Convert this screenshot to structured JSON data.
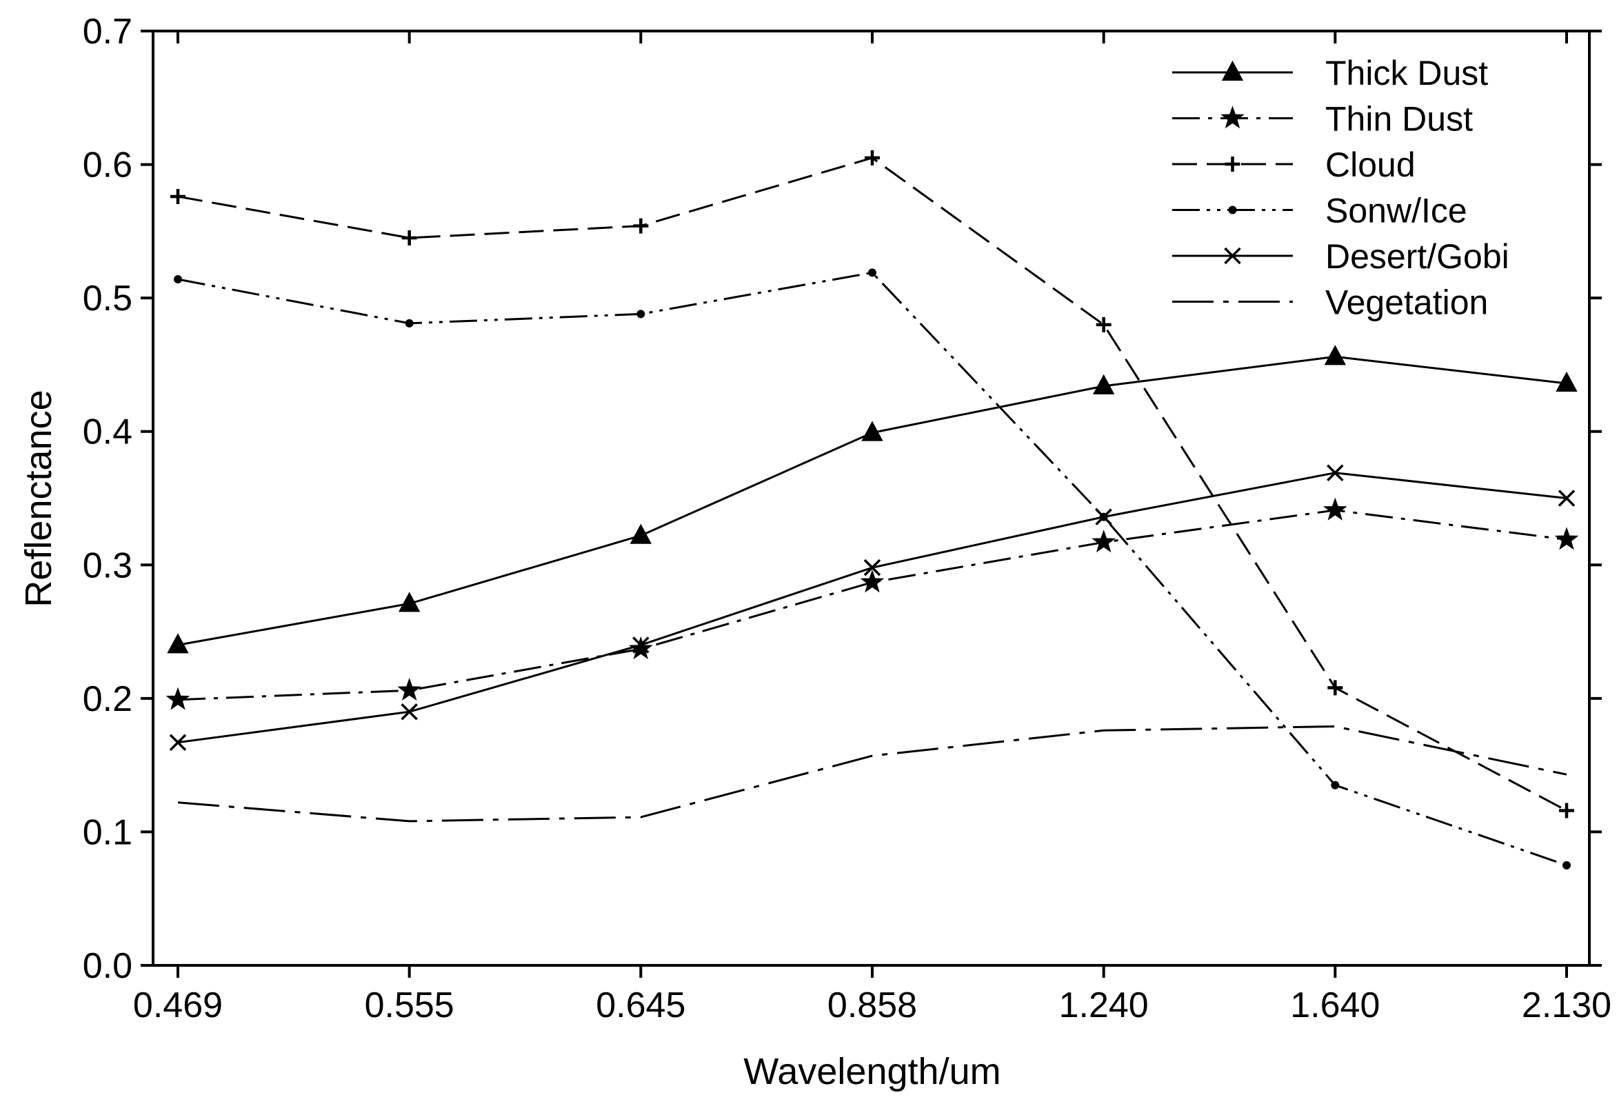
{
  "chart_data": {
    "type": "line",
    "title": "",
    "xlabel": "Wavelength/um",
    "ylabel": "Reflenctance",
    "categories": [
      "0.469",
      "0.555",
      "0.645",
      "0.858",
      "1.240",
      "1.640",
      "2.130"
    ],
    "ylim": [
      0,
      0.7
    ],
    "yticks": [
      0.0,
      0.1,
      0.2,
      0.3,
      0.4,
      0.5,
      0.6,
      0.7
    ],
    "ytick_labels": [
      "0.0",
      "0.1",
      "0.2",
      "0.3",
      "0.4",
      "0.5",
      "0.6",
      "0.7"
    ],
    "grid": false,
    "legend_position": "top-right",
    "series": [
      {
        "name": "Thick Dust",
        "marker": "triangle",
        "dash": "solid",
        "values": [
          0.24,
          0.271,
          0.322,
          0.399,
          0.434,
          0.456,
          0.436
        ]
      },
      {
        "name": "Thin Dust",
        "marker": "star",
        "dash": "dash-dot",
        "values": [
          0.199,
          0.206,
          0.237,
          0.287,
          0.317,
          0.341,
          0.319
        ]
      },
      {
        "name": "Cloud",
        "marker": "plus",
        "dash": "long-dash",
        "values": [
          0.576,
          0.545,
          0.554,
          0.605,
          0.48,
          0.208,
          0.116
        ]
      },
      {
        "name": "Sonw/Ice",
        "marker": "dot",
        "dash": "dash-dot-dot",
        "values": [
          0.514,
          0.481,
          0.488,
          0.519,
          0.336,
          0.135,
          0.075
        ]
      },
      {
        "name": "Desert/Gobi",
        "marker": "x",
        "dash": "solid",
        "values": [
          0.167,
          0.19,
          0.24,
          0.298,
          0.336,
          0.369,
          0.35
        ]
      },
      {
        "name": "Vegetation",
        "marker": "none",
        "dash": "long-dash-dot",
        "values": [
          0.122,
          0.108,
          0.111,
          0.157,
          0.176,
          0.179,
          0.143
        ]
      }
    ]
  }
}
